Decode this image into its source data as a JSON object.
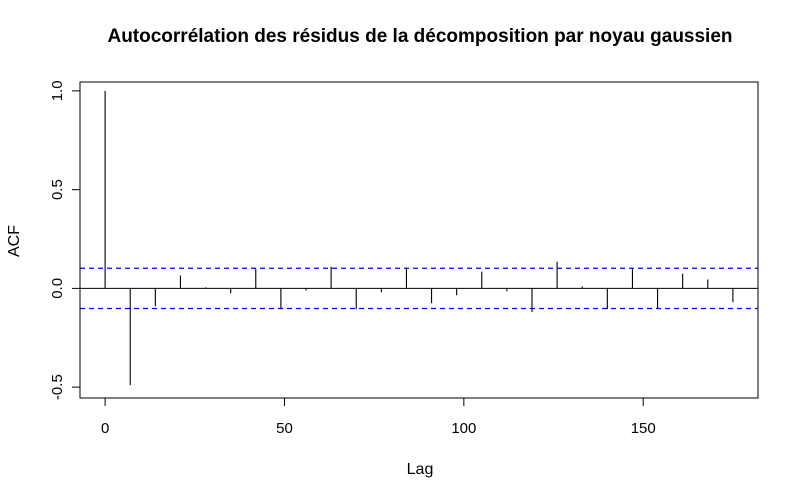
{
  "chart_data": {
    "type": "bar",
    "title": "Autocorrélation des résidus de la décomposition par noyau gaussien",
    "xlabel": "Lag",
    "ylabel": "ACF",
    "xlim": [
      -7,
      182
    ],
    "ylim": [
      -0.5,
      1.0
    ],
    "x_ticks": [
      0,
      50,
      100,
      150
    ],
    "y_ticks": [
      -0.5,
      0.0,
      0.5,
      1.0
    ],
    "x_tick_labels": [
      "0",
      "50",
      "100",
      "150"
    ],
    "y_tick_labels": [
      "-0.5",
      "0.0",
      "0.5",
      "1.0"
    ],
    "grid": false,
    "confidence_bound": 0.102,
    "bound_color": "#0000ff",
    "zero_line": true,
    "lags": [
      0,
      7,
      14,
      21,
      28,
      35,
      42,
      49,
      56,
      63,
      70,
      77,
      84,
      91,
      98,
      105,
      112,
      119,
      126,
      133,
      140,
      147,
      154,
      161,
      168,
      175
    ],
    "values": [
      1.0,
      -0.49,
      -0.09,
      0.065,
      0.005,
      -0.025,
      0.1,
      -0.1,
      -0.01,
      0.11,
      -0.105,
      -0.02,
      0.105,
      -0.075,
      -0.035,
      0.085,
      -0.015,
      -0.12,
      0.135,
      0.01,
      -0.105,
      0.1,
      -0.105,
      0.075,
      0.045,
      -0.07
    ]
  }
}
